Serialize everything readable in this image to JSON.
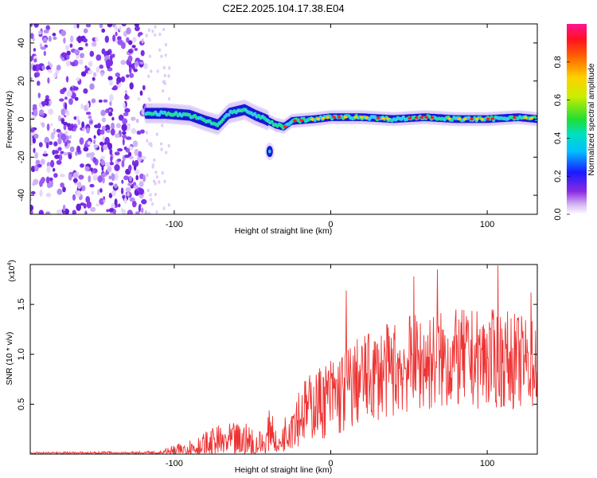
{
  "title": "C2E2.2025.104.17.38.E04",
  "chart_data": [
    {
      "type": "heatmap",
      "xlabel": "Height of straight line (km)",
      "ylabel": "Frequency (Hz)",
      "xlim": [
        -192,
        132
      ],
      "ylim": [
        -50,
        50
      ],
      "x_ticks": [
        -100,
        0,
        100
      ],
      "x_tick_labels": [
        "-100",
        "0",
        "100"
      ],
      "y_ticks": [
        -40,
        -20,
        0,
        20,
        40
      ],
      "y_tick_labels": [
        "-40",
        "-20",
        "0",
        "20",
        "40"
      ],
      "noise_region_x": [
        -192,
        -118
      ],
      "signal_track": [
        {
          "x": -118,
          "y": 3
        },
        {
          "x": -105,
          "y": 3
        },
        {
          "x": -90,
          "y": 2
        },
        {
          "x": -80,
          "y": -1
        },
        {
          "x": -72,
          "y": -3
        },
        {
          "x": -65,
          "y": 3
        },
        {
          "x": -55,
          "y": 5
        },
        {
          "x": -48,
          "y": 2
        },
        {
          "x": -42,
          "y": 0
        },
        {
          "x": -35,
          "y": -3
        },
        {
          "x": -30,
          "y": -4
        },
        {
          "x": -25,
          "y": -1
        },
        {
          "x": -10,
          "y": 0
        },
        {
          "x": 0,
          "y": 1
        },
        {
          "x": 20,
          "y": 1
        },
        {
          "x": 40,
          "y": 0
        },
        {
          "x": 60,
          "y": 1
        },
        {
          "x": 80,
          "y": 0
        },
        {
          "x": 100,
          "y": 0
        },
        {
          "x": 120,
          "y": 1
        },
        {
          "x": 132,
          "y": 0
        }
      ],
      "blob": {
        "x": -39,
        "y": -17
      },
      "colorbar": {
        "label": "Normalized spectral amplitude",
        "range": [
          0,
          1
        ],
        "ticks": [
          0.0,
          0.2,
          0.4,
          0.6,
          0.8
        ],
        "tick_labels": [
          "0.0",
          "0.2",
          "0.4",
          "0.6",
          "0.8"
        ]
      }
    },
    {
      "type": "line",
      "xlabel": "Height of straight line (km)",
      "ylabel": "SNR (10 * v/v)",
      "y_multiplier": "(x10",
      "y_multiplier_exp": "4",
      "y_multiplier_close": ")",
      "xlim": [
        -192,
        132
      ],
      "ylim": [
        0,
        1.9
      ],
      "x_ticks": [
        -100,
        0,
        100
      ],
      "x_tick_labels": [
        "-100",
        "0",
        "100"
      ],
      "y_ticks": [
        0.5,
        1.0,
        1.5
      ],
      "y_tick_labels": [
        "0.5",
        "1.0",
        "1.5"
      ],
      "color": "#ee3333",
      "envelope": [
        {
          "x": -192,
          "base": 0.01,
          "amp": 0.01
        },
        {
          "x": -110,
          "base": 0.01,
          "amp": 0.02
        },
        {
          "x": -95,
          "base": 0.04,
          "amp": 0.08
        },
        {
          "x": -80,
          "base": 0.08,
          "amp": 0.15
        },
        {
          "x": -70,
          "base": 0.12,
          "amp": 0.18
        },
        {
          "x": -55,
          "base": 0.12,
          "amp": 0.2
        },
        {
          "x": -42,
          "base": 0.1,
          "amp": 0.12
        },
        {
          "x": -38,
          "base": 0.3,
          "amp": 0.25
        },
        {
          "x": -34,
          "base": 0.05,
          "amp": 0.05
        },
        {
          "x": -25,
          "base": 0.35,
          "amp": 0.3
        },
        {
          "x": -10,
          "base": 0.5,
          "amp": 0.35
        },
        {
          "x": 5,
          "base": 0.6,
          "amp": 0.45
        },
        {
          "x": 20,
          "base": 0.75,
          "amp": 0.45
        },
        {
          "x": 50,
          "base": 0.9,
          "amp": 0.5
        },
        {
          "x": 80,
          "base": 0.95,
          "amp": 0.5
        },
        {
          "x": 110,
          "base": 0.95,
          "amp": 0.5
        },
        {
          "x": 132,
          "base": 0.9,
          "amp": 0.45
        }
      ],
      "peaks": [
        {
          "x": 10,
          "y": 1.64
        },
        {
          "x": 53,
          "y": 1.78
        },
        {
          "x": 68,
          "y": 1.85
        },
        {
          "x": 107,
          "y": 1.89
        },
        {
          "x": 128,
          "y": 1.62
        }
      ]
    }
  ],
  "colors": {
    "axis": "#000000",
    "line": "#ee3333",
    "noise": "#7a2ee8",
    "track_low": "#1010e0",
    "track_mid": "#22dd99",
    "track_high": "#ff2020"
  }
}
